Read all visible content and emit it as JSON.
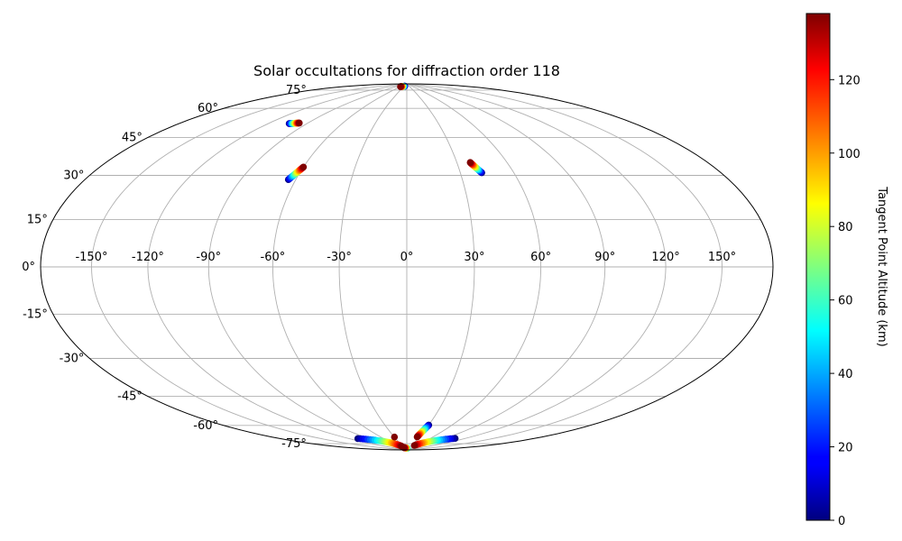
{
  "chart_data": {
    "type": "scatter",
    "projection": "hammer",
    "title": "Solar occultations for diffraction order 118",
    "lon_tick_values": [
      -150,
      -120,
      -90,
      -60,
      -30,
      0,
      30,
      60,
      90,
      120,
      150
    ],
    "lon_tick_labels": [
      "-150°",
      "-120°",
      "-90°",
      "-60°",
      "-30°",
      "0°",
      "30°",
      "60°",
      "90°",
      "120°",
      "150°"
    ],
    "lat_tick_values": [
      75,
      60,
      45,
      30,
      15,
      0,
      -15,
      -30,
      -45,
      -60,
      -75
    ],
    "lat_tick_labels": [
      "75°",
      "60°",
      "45°",
      "30°",
      "15°",
      "0°",
      "-15°",
      "-30°",
      "-45°",
      "-60°",
      "-75°"
    ],
    "grid": true,
    "colorbar": {
      "label": "Tangent Point Altitude (km)",
      "range": [
        0,
        138
      ],
      "ticks": [
        0,
        20,
        40,
        60,
        80,
        100,
        120
      ],
      "tick_labels": [
        "0",
        "20",
        "40",
        "60",
        "80",
        "100",
        "120"
      ],
      "colormap": "jet"
    },
    "tracks": [
      {
        "lon0": -60,
        "lat0": 44,
        "alt0": 138,
        "lon1": -64,
        "lat1": 38,
        "alt1": 0
      },
      {
        "lon0": -97,
        "lat0": 63.5,
        "alt0": 138,
        "lon1": -104,
        "lat1": 62.5,
        "alt1": 0
      },
      {
        "lon0": -60,
        "lat0": 88,
        "alt0": 138,
        "lon1": -25,
        "lat1": 88.5,
        "alt1": 0
      },
      {
        "lon0": 38,
        "lat0": 47,
        "alt0": 138,
        "lon1": 42,
        "lat1": 42,
        "alt1": 0
      },
      {
        "lon0": -108,
        "lat0": -80,
        "alt0": 0,
        "lon1": -40,
        "lat1": -87.5,
        "alt1": 138
      },
      {
        "lon0": -35,
        "lat0": -88.5,
        "alt0": 138,
        "lon1": 8,
        "lat1": -89,
        "alt1": 50
      },
      {
        "lon0": 48,
        "lat0": -87,
        "alt0": 138,
        "lon1": 106,
        "lat1": -80,
        "alt1": 0
      },
      {
        "lon0": 30,
        "lat0": -75,
        "alt0": 0,
        "lon1": 25,
        "lat1": -82,
        "alt1": 138
      }
    ],
    "points": [
      {
        "lon": -30,
        "lat": -82,
        "alt": 138
      }
    ]
  }
}
